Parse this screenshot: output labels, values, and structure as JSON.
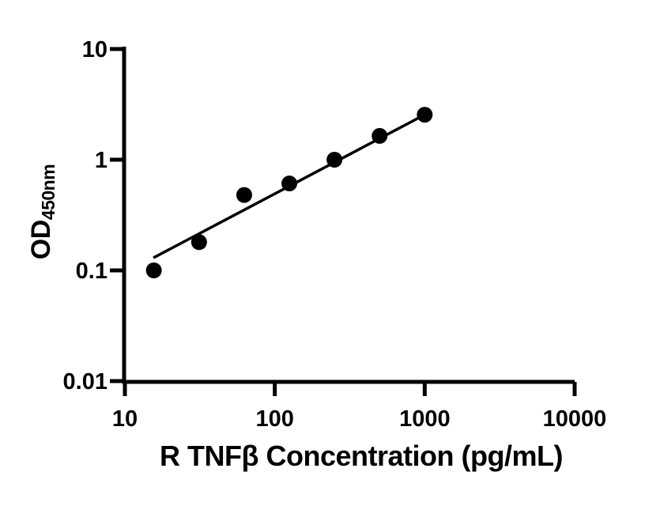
{
  "figure": {
    "background": "#ffffff",
    "foreground": "#000000"
  },
  "chart_data": {
    "type": "scatter",
    "title": "",
    "xlabel": "R TNFβ Concentration (pg/mL)",
    "ylabel_main": "OD",
    "ylabel_sub": "450nm",
    "x_scale": "log",
    "y_scale": "log",
    "xlim": [
      10,
      10000
    ],
    "ylim": [
      0.01,
      10
    ],
    "x_ticks": [
      "10",
      "100",
      "1000",
      "10000"
    ],
    "y_ticks": [
      "10",
      "1",
      "0.1",
      "0.01"
    ],
    "grid": false,
    "legend": false,
    "marker": {
      "shape": "filled-circle",
      "color": "#000000",
      "radius_px": 10
    },
    "line_color": "#000000",
    "axis_color": "#000000",
    "series": [
      {
        "name": "standard-curve-points",
        "type": "scatter",
        "x": [
          15.6,
          31.25,
          62.5,
          125,
          250,
          500,
          1000
        ],
        "y": [
          0.1,
          0.18,
          0.48,
          0.61,
          1.0,
          1.64,
          2.55
        ]
      },
      {
        "name": "fit-line",
        "type": "line",
        "x": [
          15.5,
          1000
        ],
        "y": [
          0.13,
          2.55
        ]
      }
    ]
  }
}
